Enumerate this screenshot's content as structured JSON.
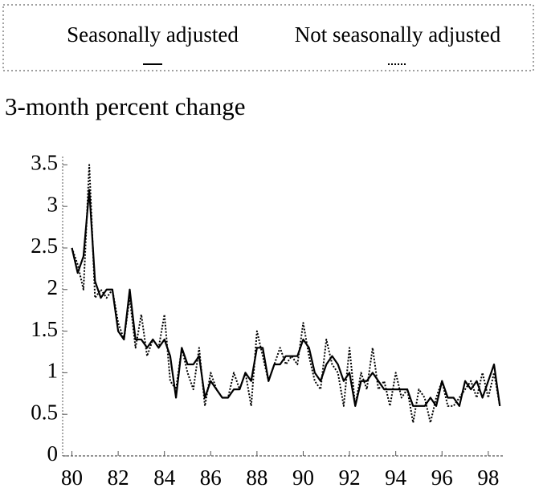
{
  "chart_data": {
    "type": "line",
    "subtitle": "3-month percent change",
    "x": [
      80,
      80.25,
      80.5,
      80.75,
      81,
      81.25,
      81.5,
      81.75,
      82,
      82.25,
      82.5,
      82.75,
      83,
      83.25,
      83.5,
      83.75,
      84,
      84.25,
      84.5,
      84.75,
      85,
      85.25,
      85.5,
      85.75,
      86,
      86.25,
      86.5,
      86.75,
      87,
      87.25,
      87.5,
      87.75,
      88,
      88.25,
      88.5,
      88.75,
      89,
      89.25,
      89.5,
      89.75,
      90,
      90.25,
      90.5,
      90.75,
      91,
      91.25,
      91.5,
      91.75,
      92,
      92.25,
      92.5,
      92.75,
      93,
      93.25,
      93.5,
      93.75,
      94,
      94.25,
      94.5,
      94.75,
      95,
      95.25,
      95.5,
      95.75,
      96,
      96.25,
      96.5,
      96.75,
      97,
      97.25,
      97.5,
      97.75,
      98,
      98.25,
      98.5
    ],
    "series": [
      {
        "name": "Seasonally adjusted",
        "color": "#000000",
        "line_style": "solid",
        "values": [
          2.5,
          2.2,
          2.4,
          3.2,
          2.1,
          1.9,
          2.0,
          2.0,
          1.5,
          1.4,
          2.0,
          1.4,
          1.4,
          1.3,
          1.4,
          1.3,
          1.4,
          1.2,
          0.7,
          1.3,
          1.1,
          1.1,
          1.2,
          0.7,
          0.9,
          0.8,
          0.7,
          0.7,
          0.8,
          0.8,
          1.0,
          0.9,
          1.3,
          1.3,
          0.9,
          1.1,
          1.1,
          1.2,
          1.2,
          1.2,
          1.4,
          1.3,
          1.0,
          0.9,
          1.1,
          1.2,
          1.1,
          0.9,
          1.0,
          0.6,
          0.9,
          0.9,
          1.0,
          0.9,
          0.8,
          0.8,
          0.8,
          0.8,
          0.8,
          0.6,
          0.6,
          0.6,
          0.7,
          0.6,
          0.9,
          0.7,
          0.7,
          0.6,
          0.9,
          0.8,
          0.9,
          0.7,
          0.9,
          1.1,
          0.6
        ]
      },
      {
        "name": "Not seasonally adjusted",
        "color": "#000000",
        "line_style": "dotted",
        "values": [
          2.5,
          2.3,
          2.0,
          3.5,
          1.9,
          2.0,
          1.9,
          2.0,
          1.6,
          1.4,
          1.9,
          1.3,
          1.7,
          1.2,
          1.4,
          1.3,
          1.7,
          0.9,
          0.8,
          1.3,
          1.0,
          0.8,
          1.3,
          0.6,
          1.0,
          0.8,
          0.7,
          0.7,
          1.0,
          0.8,
          1.0,
          0.6,
          1.5,
          1.2,
          0.9,
          1.1,
          1.3,
          1.1,
          1.2,
          1.1,
          1.6,
          1.2,
          0.9,
          0.8,
          1.4,
          1.1,
          1.0,
          0.6,
          1.3,
          0.6,
          1.0,
          0.8,
          1.3,
          0.8,
          0.9,
          0.6,
          1.0,
          0.7,
          0.8,
          0.4,
          0.8,
          0.7,
          0.4,
          0.7,
          0.9,
          0.6,
          0.6,
          0.7,
          0.8,
          0.9,
          0.7,
          1.0,
          0.7,
          1.0,
          0.6
        ]
      }
    ],
    "xlim": [
      79.6,
      98.7
    ],
    "xticks": [
      80,
      82,
      84,
      86,
      88,
      90,
      92,
      94,
      96,
      98
    ],
    "ylim": [
      0,
      3.6
    ],
    "yticks": [
      0,
      0.5,
      1,
      1.5,
      2,
      2.5,
      3,
      3.5
    ],
    "grid": false
  }
}
